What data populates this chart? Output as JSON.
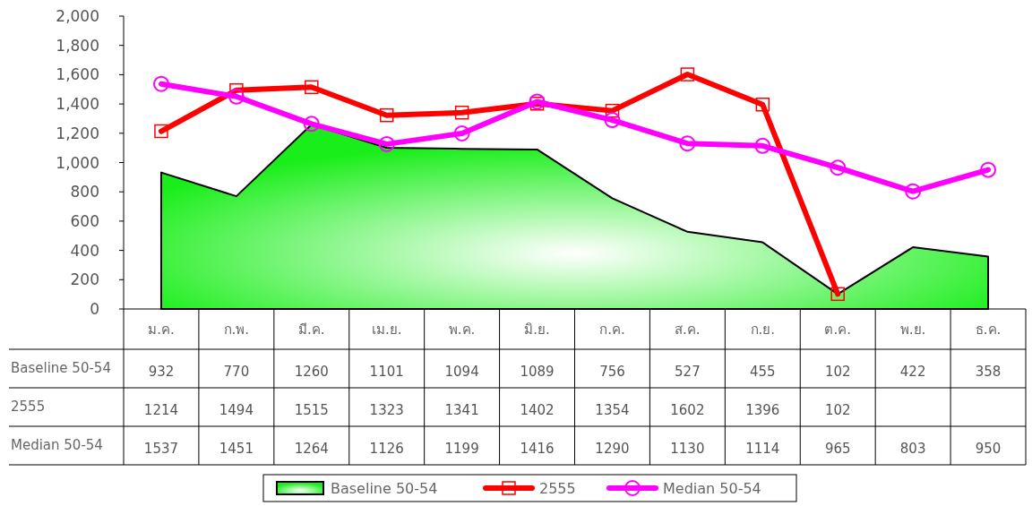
{
  "chart_data": {
    "type": "line",
    "categories": [
      "ม.ค.",
      "ก.พ.",
      "มี.ค.",
      "เม.ย.",
      "พ.ค.",
      "มิ.ย.",
      "ก.ค.",
      "ส.ค.",
      "ก.ย.",
      "ต.ค.",
      "พ.ย.",
      "ธ.ค."
    ],
    "series": [
      {
        "name": "Baseline 50-54",
        "type": "area",
        "color": "#1aee1a",
        "marker": "none",
        "values": [
          932,
          770,
          1260,
          1101,
          1094,
          1089,
          756,
          527,
          455,
          102,
          422,
          358
        ]
      },
      {
        "name": "2555",
        "type": "line",
        "color": "#ff0000",
        "marker": "square",
        "values": [
          1214,
          1494,
          1515,
          1323,
          1341,
          1402,
          1354,
          1602,
          1396,
          102,
          null,
          null
        ]
      },
      {
        "name": "Median 50-54",
        "type": "line",
        "color": "#ff00ff",
        "marker": "circle",
        "values": [
          1537,
          1451,
          1264,
          1126,
          1199,
          1416,
          1290,
          1130,
          1114,
          965,
          803,
          950
        ]
      }
    ],
    "ylim": [
      0,
      2000
    ],
    "yticks": [
      {
        "value": 0,
        "label": "0"
      },
      {
        "value": 200,
        "label": "200"
      },
      {
        "value": 400,
        "label": "400"
      },
      {
        "value": 600,
        "label": "600"
      },
      {
        "value": 800,
        "label": "800"
      },
      {
        "value": 1000,
        "label": "1,000"
      },
      {
        "value": 1200,
        "label": "1,200"
      },
      {
        "value": 1400,
        "label": "1,400"
      },
      {
        "value": 1600,
        "label": "1,600"
      },
      {
        "value": 1800,
        "label": "1,800"
      },
      {
        "value": 2000,
        "label": "2,000"
      }
    ],
    "grid": false,
    "legend": "bottom",
    "data_labels": true
  }
}
